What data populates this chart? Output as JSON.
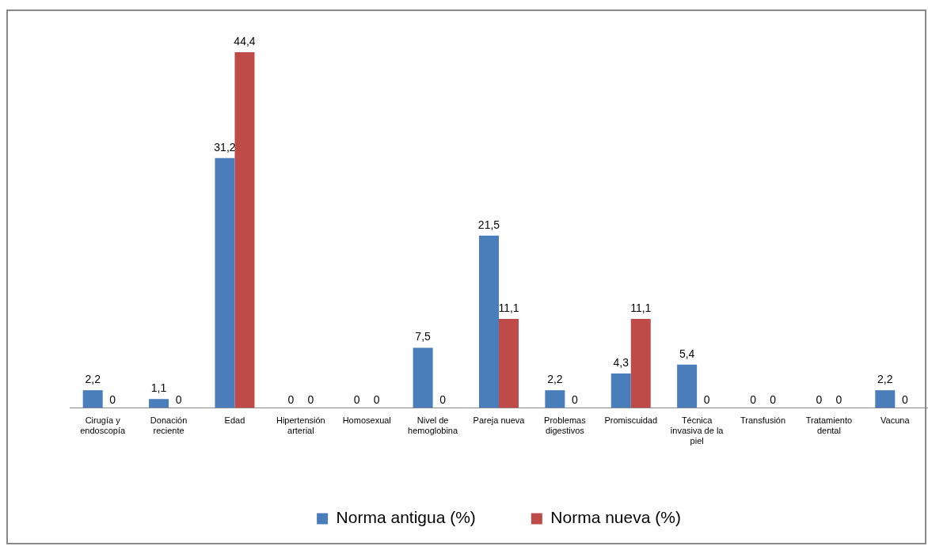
{
  "chart_data": {
    "type": "bar",
    "categories": [
      "Cirugía y endoscopía",
      "Donación reciente",
      "Edad",
      "Hipertensión arterial",
      "Homosexual",
      "Nivel de hemoglobina",
      "Pareja nueva",
      "Problemas digestivos",
      "Promiscuidad",
      "Técnica invasiva de la piel",
      "Transfusión",
      "Tratamiento dental",
      "Vacuna"
    ],
    "series": [
      {
        "name": "Norma antigua (%)",
        "color": "#4a7ebb",
        "values": [
          2.2,
          1.1,
          31.2,
          0,
          0,
          7.5,
          21.5,
          2.2,
          4.3,
          5.4,
          0,
          0,
          2.2
        ],
        "value_labels": [
          "2,2",
          "1,1",
          "31,2",
          "0",
          "0",
          "7,5",
          "21,5",
          "2,2",
          "4,3",
          "5,4",
          "0",
          "0",
          "2,2"
        ]
      },
      {
        "name": "Norma nueva (%)",
        "color": "#be4b48",
        "values": [
          0,
          0,
          44.4,
          0,
          0,
          0,
          11.1,
          0,
          11.1,
          0,
          0,
          0,
          0
        ],
        "value_labels": [
          "0",
          "0",
          "44,4",
          "0",
          "0",
          "0",
          "11,1",
          "0",
          "11,1",
          "0",
          "0",
          "0",
          "0"
        ]
      }
    ],
    "legend": "bottom",
    "tick_labels": "x"
  }
}
